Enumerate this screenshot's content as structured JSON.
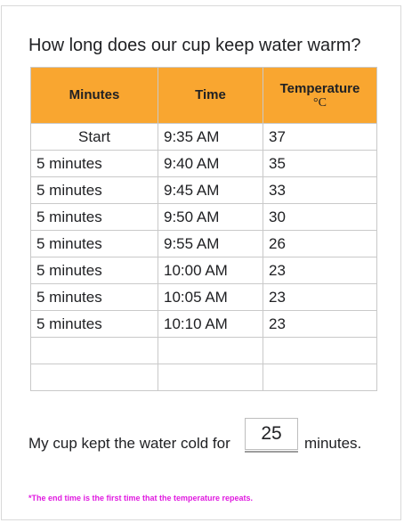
{
  "title": "How long does our cup keep water warm?",
  "table": {
    "headers": {
      "minutes": "Minutes",
      "time": "Time",
      "temperature": "Temperature",
      "temperature_unit": "°C"
    },
    "rows": [
      {
        "minutes": "Start",
        "time": "9:35 AM",
        "temp": "37"
      },
      {
        "minutes": "5 minutes",
        "time": "9:40 AM",
        "temp": "35"
      },
      {
        "minutes": "5 minutes",
        "time": "9:45 AM",
        "temp": "33"
      },
      {
        "minutes": "5 minutes",
        "time": "9:50 AM",
        "temp": "30"
      },
      {
        "minutes": "5 minutes",
        "time": "9:55 AM",
        "temp": "26"
      },
      {
        "minutes": "5 minutes",
        "time": "10:00 AM",
        "temp": "23"
      },
      {
        "minutes": "5 minutes",
        "time": "10:05 AM",
        "temp": "23"
      },
      {
        "minutes": "5 minutes",
        "time": "10:10 AM",
        "temp": "23"
      },
      {
        "minutes": "",
        "time": "",
        "temp": ""
      },
      {
        "minutes": "",
        "time": "",
        "temp": ""
      }
    ]
  },
  "answer": {
    "prefix": "My cup kept the water cold for",
    "value": "25",
    "suffix": "minutes."
  },
  "note": "*The end time is the first time that the temperature repeats.",
  "colors": {
    "header_bg": "#f9a630",
    "note": "#e01ae0"
  }
}
